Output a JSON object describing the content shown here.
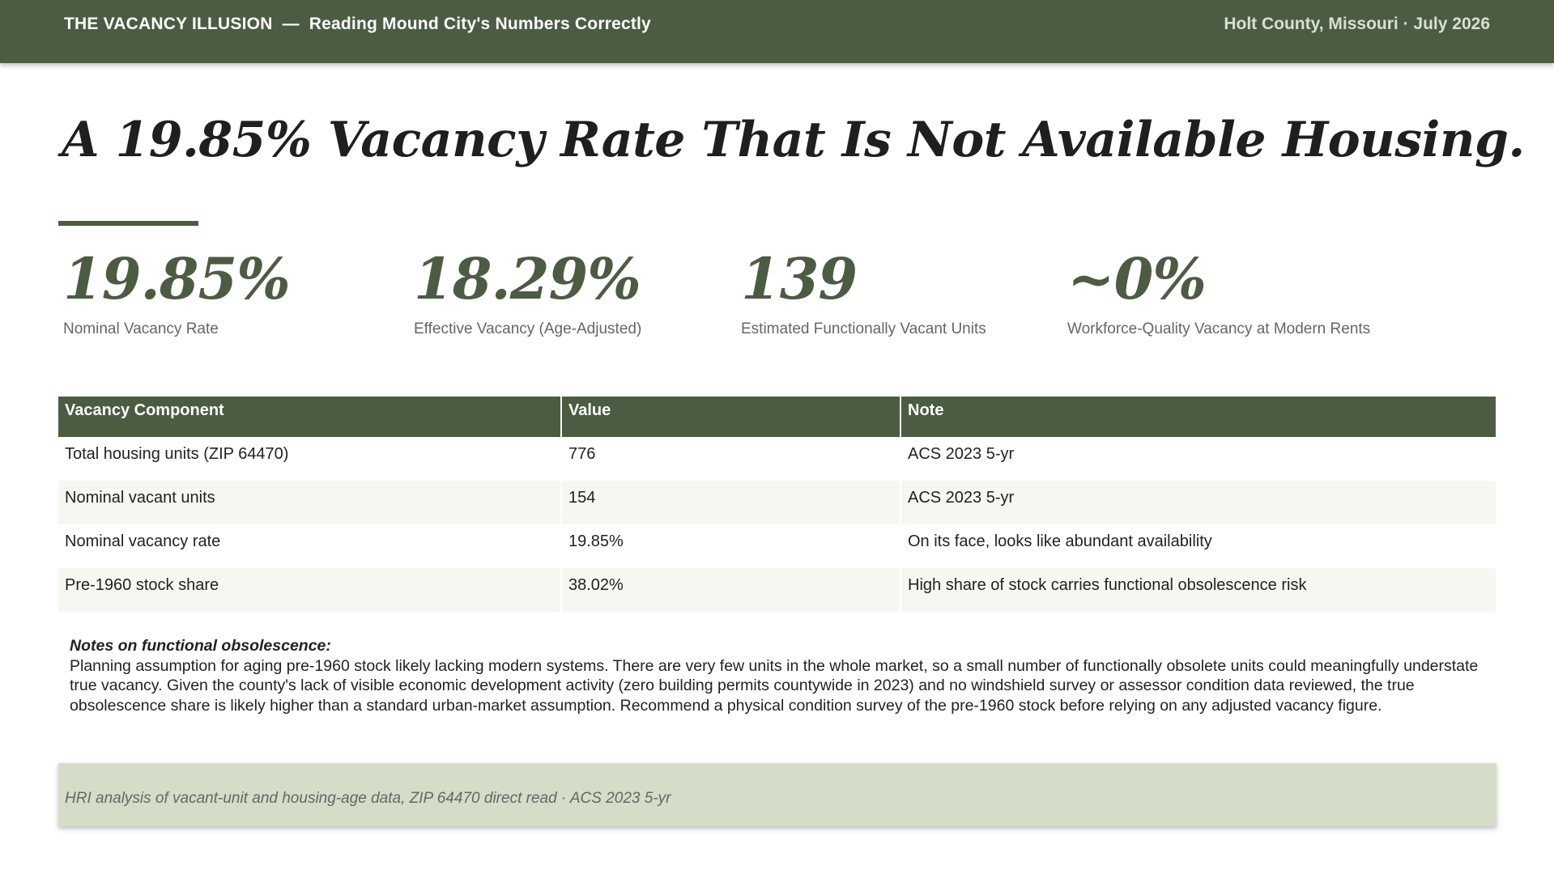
{
  "header": {
    "title": "THE VACANCY ILLUSION",
    "separator": "—",
    "subtitle": "Reading Mound City's Numbers Correctly",
    "location_date": "Holt County, Missouri · July 2026",
    "bg_color": "#4b5c42"
  },
  "headline": "A 19.85% Vacancy Rate That Is Not Available Housing.",
  "stats": [
    {
      "value": "19.85%",
      "label": "Nominal Vacancy Rate"
    },
    {
      "value": "18.29%",
      "label": "Effective Vacancy (Age-Adjusted)"
    },
    {
      "value": "139",
      "label": "Estimated Functionally Vacant Units"
    },
    {
      "value": "~0%",
      "label": "Workforce-Quality Vacancy at Modern Rents"
    }
  ],
  "table": {
    "headers": [
      "Vacancy Component",
      "Value",
      "Note"
    ],
    "rows": [
      [
        "Total housing units (ZIP 64470)",
        "776",
        "ACS 2023 5-yr"
      ],
      [
        "Nominal vacant units",
        "154",
        "ACS 2023 5-yr"
      ],
      [
        "Nominal vacancy rate",
        "19.85%",
        "On its face, looks like abundant availability"
      ],
      [
        "Pre-1960 stock share",
        "38.02%",
        "High share of stock carries functional obsolescence risk"
      ]
    ]
  },
  "notes": {
    "title": "Notes on functional obsolescence:",
    "body": "Planning assumption for aging pre-1960 stock likely lacking modern systems. There are very few units in the whole market, so a small number of functionally obsolete units could meaningfully understate true vacancy. Given the county's lack of visible economic development activity (zero building permits countywide in 2023) and no windshield survey or assessor condition data reviewed, the true obsolescence share is likely higher than a standard urban-market assumption. Recommend a physical condition survey of the pre-1960 stock before relying on any adjusted vacancy figure."
  },
  "source": "HRI analysis of vacant-unit and housing-age data, ZIP 64470 direct read · ACS 2023 5-yr"
}
